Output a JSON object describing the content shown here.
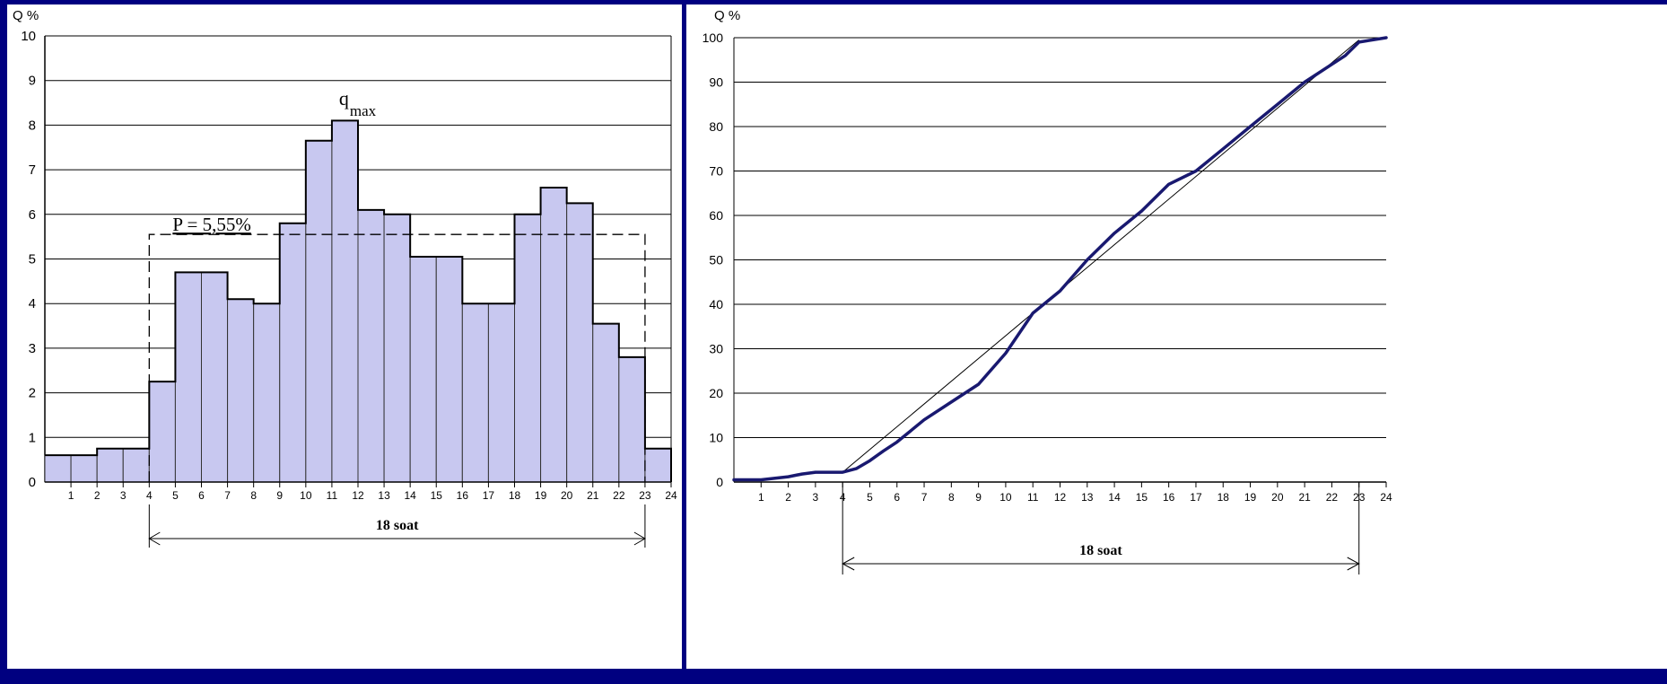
{
  "colors": {
    "background": "#000080",
    "panel": "#ffffff",
    "bar_fill": "#c8c8f0",
    "curve": "#191970",
    "text": "#000000"
  },
  "chart_data": [
    {
      "type": "bar",
      "ylabel": "Q %",
      "ylim": [
        0,
        10
      ],
      "yticks": [
        "0",
        "1",
        "2",
        "3",
        "4",
        "5",
        "6",
        "7",
        "8",
        "9",
        "10"
      ],
      "xticks": [
        "1",
        "2",
        "3",
        "4",
        "5",
        "6",
        "7",
        "8",
        "9",
        "10",
        "11",
        "12",
        "13",
        "14",
        "15",
        "16",
        "17",
        "18",
        "19",
        "20",
        "21",
        "22",
        "23",
        "24"
      ],
      "values": [
        0.6,
        0.6,
        0.75,
        0.75,
        2.25,
        4.7,
        4.7,
        4.1,
        4.0,
        5.8,
        7.65,
        8.1,
        6.1,
        6.0,
        5.05,
        5.05,
        4.0,
        4.0,
        6.0,
        6.6,
        6.25,
        3.55,
        2.8,
        0.75
      ],
      "grid": true,
      "average_line": {
        "value": 5.55,
        "from_hour": 4,
        "to_hour": 23,
        "label": "P = 5,55%"
      },
      "peak_label": {
        "main": "q",
        "sub": "max",
        "hour_index": 11
      },
      "span": {
        "from_hour": 4,
        "to_hour": 23,
        "label": "18 soat"
      }
    },
    {
      "type": "line",
      "ylabel": "Q %",
      "ylim": [
        0,
        100
      ],
      "yticks": [
        "0",
        "10",
        "20",
        "30",
        "40",
        "50",
        "60",
        "70",
        "80",
        "90",
        "100"
      ],
      "xticks": [
        "1",
        "2",
        "3",
        "4",
        "5",
        "6",
        "7",
        "8",
        "9",
        "10",
        "11",
        "12",
        "13",
        "14",
        "15",
        "16",
        "17",
        "18",
        "19",
        "20",
        "21",
        "22",
        "23",
        "24"
      ],
      "xlim": [
        0,
        24
      ],
      "grid": true,
      "series": [
        {
          "x": [
            0,
            1,
            2,
            2.5,
            3,
            4,
            4.5,
            5,
            5.5,
            6,
            7,
            8,
            9,
            10,
            11,
            12,
            13,
            14,
            15,
            16,
            17,
            18,
            19,
            20,
            21,
            22,
            22.5,
            23,
            24
          ],
          "y": [
            0.5,
            0.5,
            1.2,
            1.8,
            2.2,
            2.2,
            3,
            4.8,
            7,
            9,
            14,
            18,
            22,
            29,
            38,
            43,
            50,
            56,
            61,
            67,
            70,
            75,
            80,
            85,
            90,
            94,
            96,
            99,
            100
          ]
        },
        {
          "x": [
            4,
            23
          ],
          "y": [
            2.2,
            99.5
          ]
        }
      ],
      "span": {
        "from_hour": 4,
        "to_hour": 23,
        "label": "18 soat"
      }
    }
  ]
}
